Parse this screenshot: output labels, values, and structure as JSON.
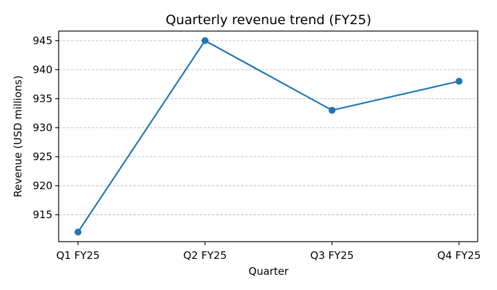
{
  "chart_data": {
    "type": "line",
    "title": "Quarterly revenue trend (FY25)",
    "xlabel": "Quarter",
    "ylabel": "Revenue (USD millions)",
    "categories": [
      "Q1 FY25",
      "Q2 FY25",
      "Q3 FY25",
      "Q4 FY25"
    ],
    "series": [
      {
        "values": [
          912,
          945,
          933,
          938
        ],
        "color": "#1f77b4"
      }
    ],
    "yticks": [
      915,
      920,
      925,
      930,
      935,
      940,
      945
    ],
    "ylim": [
      910.35,
      946.65
    ],
    "grid": "y-dashed",
    "legend": "none"
  }
}
